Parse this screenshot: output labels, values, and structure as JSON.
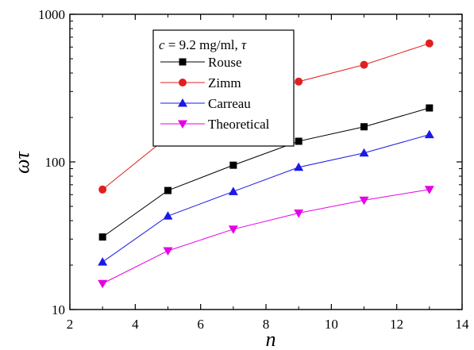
{
  "chart_data": {
    "type": "line",
    "title": "",
    "xlabel": "n",
    "ylabel": "ωτ",
    "xlim": [
      2,
      14
    ],
    "ylim": [
      10,
      1000
    ],
    "yscale": "log",
    "grid": false,
    "legend_position": "top-left",
    "legend_title": {
      "c_var": "c",
      "c_rest": " = 9.2 mg/ml, ",
      "tau": "τ"
    },
    "x_ticks": [
      2,
      4,
      6,
      8,
      10,
      12,
      14
    ],
    "x_tick_labels": [
      "2",
      "4",
      "6",
      "8",
      "10",
      "12",
      "14"
    ],
    "y_ticks": [
      10,
      100,
      1000
    ],
    "y_tick_labels": [
      "10",
      "100",
      "1000"
    ],
    "series": [
      {
        "name": "Rouse",
        "color": "#000000",
        "marker": "square",
        "x": [
          3,
          5,
          7,
          9,
          11,
          13
        ],
        "y": [
          31,
          64,
          95,
          138,
          173,
          232
        ]
      },
      {
        "name": "Zimm",
        "color": "#e02020",
        "marker": "circle",
        "x": [
          3,
          5,
          7,
          9,
          11,
          13
        ],
        "y": [
          65,
          148,
          240,
          350,
          455,
          635
        ]
      },
      {
        "name": "Carreau",
        "color": "#1a1ae6",
        "marker": "triangle-up",
        "x": [
          3,
          5,
          7,
          9,
          11,
          13
        ],
        "y": [
          21,
          43,
          63,
          92,
          115,
          153
        ]
      },
      {
        "name": "Theoretical",
        "color": "#e600e6",
        "marker": "triangle-down",
        "x": [
          3,
          5,
          7,
          9,
          11,
          13
        ],
        "y": [
          15,
          25,
          35,
          45,
          55,
          65
        ]
      }
    ]
  }
}
